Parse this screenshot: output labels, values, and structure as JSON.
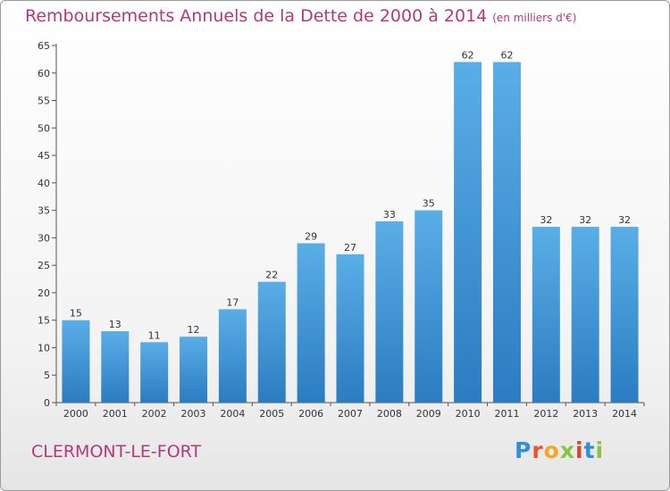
{
  "chart_data": {
    "type": "bar",
    "title": "Remboursements Annuels de la Dette de 2000 à 2014",
    "subtitle": "(en milliers d'€)",
    "categories": [
      "2000",
      "2001",
      "2002",
      "2003",
      "2004",
      "2005",
      "2006",
      "2007",
      "2008",
      "2009",
      "2010",
      "2011",
      "2012",
      "2013",
      "2014"
    ],
    "values": [
      15,
      13,
      11,
      12,
      17,
      22,
      29,
      27,
      33,
      35,
      62,
      62,
      32,
      32,
      32
    ],
    "data_labels": [
      "15",
      "13",
      "11",
      "12",
      "17",
      "22",
      "29",
      "27",
      "33",
      "35",
      "62",
      "62",
      "32",
      "32",
      "32"
    ],
    "yticks": [
      0,
      5,
      10,
      15,
      20,
      25,
      30,
      35,
      40,
      45,
      50,
      55,
      60,
      65
    ],
    "ylim": [
      0,
      65
    ],
    "grid": false,
    "bar_color_top": "#5aaee6",
    "bar_color_bottom": "#2b7cc1"
  },
  "footer": {
    "location": "CLERMONT-LE-FORT",
    "logo_letters": [
      "P",
      "r",
      "o",
      "x",
      "i",
      "t",
      "i"
    ]
  },
  "colors": {
    "title": "#b03a7e"
  }
}
